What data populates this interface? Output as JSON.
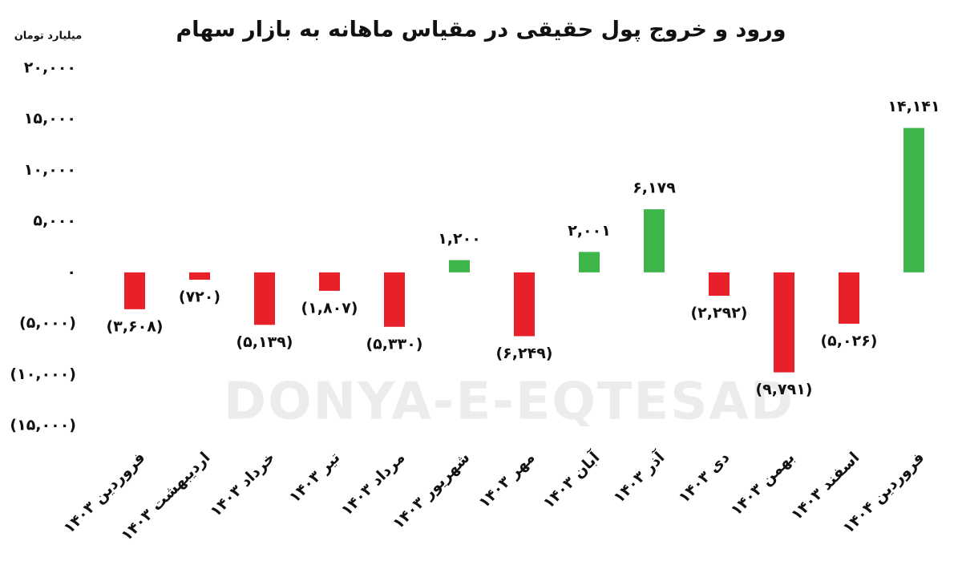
{
  "chart_data": {
    "type": "bar",
    "title": "ورود و خروج پول حقیقی در مقیاس ماهانه به بازار سهام",
    "y_label": "میلیارد تومان",
    "watermark": "DONYA-E-EQTESAD",
    "categories": [
      "فروردین ۱۴۰۳",
      "اردیبهشت ۱۴۰۳",
      "خرداد ۱۴۰۳",
      "تیر ۱۴۰۳",
      "مرداد ۱۴۰۳",
      "شهریور ۱۴۰۳",
      "مهر ۱۴۰۳",
      "آبان ۱۴۰۳",
      "آذر ۱۴۰۳",
      "دی ۱۴۰۳",
      "بهمن ۱۴۰۳",
      "اسفند ۱۴۰۳",
      "فروردین ۱۴۰۴"
    ],
    "values": [
      -3608,
      -720,
      -5139,
      -1807,
      -5330,
      1200,
      -6249,
      2001,
      6179,
      -2292,
      -9791,
      -5026,
      14141
    ],
    "value_labels": [
      "(۳,۶۰۸)",
      "(۷۲۰)",
      "(۵,۱۳۹)",
      "(۱,۸۰۷)",
      "(۵,۳۳۰)",
      "۱,۲۰۰",
      "(۶,۲۴۹)",
      "۲,۰۰۱",
      "۶,۱۷۹",
      "(۲,۲۹۲)",
      "(۹,۷۹۱)",
      "(۵,۰۲۶)",
      "۱۴,۱۴۱"
    ],
    "positive_color": "#3db54a",
    "negative_color": "#e8202a",
    "ylim": [
      -15000,
      20000
    ],
    "yticks": [
      {
        "value": 20000,
        "label": "۲۰,۰۰۰"
      },
      {
        "value": 15000,
        "label": "۱۵,۰۰۰"
      },
      {
        "value": 10000,
        "label": "۱۰,۰۰۰"
      },
      {
        "value": 5000,
        "label": "۵,۰۰۰"
      },
      {
        "value": 0,
        "label": "۰"
      },
      {
        "value": -5000,
        "label": "(۵,۰۰۰)"
      },
      {
        "value": -10000,
        "label": "(۱۰,۰۰۰)"
      },
      {
        "value": -15000,
        "label": "(۱۵,۰۰۰)"
      }
    ],
    "grid": false
  }
}
